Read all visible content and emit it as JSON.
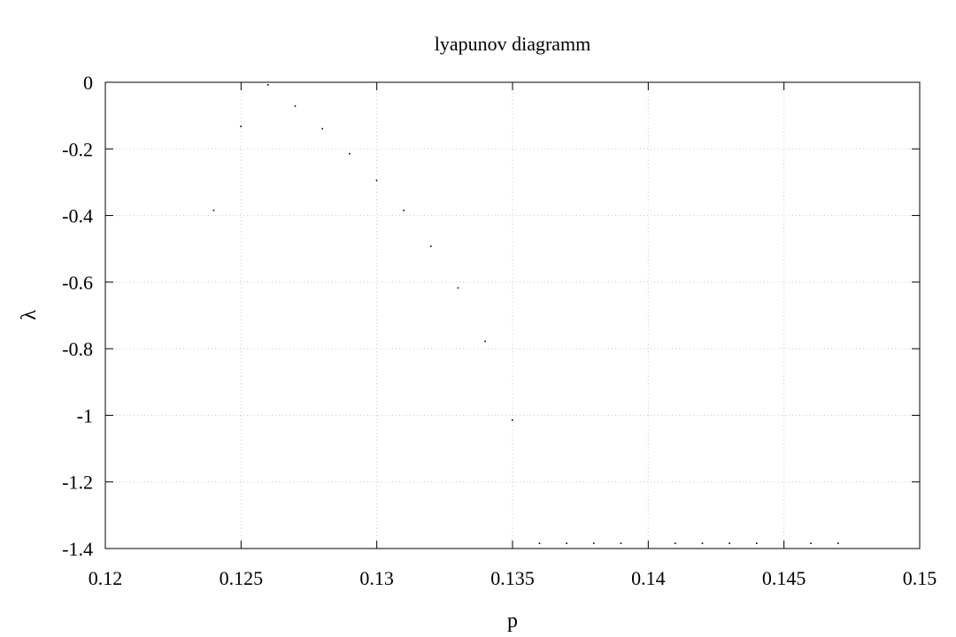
{
  "chart_data": {
    "type": "scatter",
    "title": "lyapunov diagramm",
    "xlabel": "p",
    "ylabel": "λ",
    "xlim": [
      0.12,
      0.15
    ],
    "ylim": [
      -1.4,
      0
    ],
    "xticks": [
      0.12,
      0.125,
      0.13,
      0.135,
      0.14,
      0.145,
      0.15
    ],
    "xtick_labels": [
      "0.12",
      "0.125",
      "0.13",
      "0.135",
      "0.14",
      "0.145",
      "0.15"
    ],
    "yticks": [
      0,
      -0.2,
      -0.4,
      -0.6,
      -0.8,
      -1,
      -1.2,
      -1.4
    ],
    "ytick_labels": [
      "0",
      "-0.2",
      "-0.4",
      "-0.6",
      "-0.8",
      "-1",
      "-1.2",
      "-1.4"
    ],
    "grid": true,
    "legend": "none",
    "point_color": "#000000",
    "grid_color": "#c8c8c8",
    "points": [
      {
        "x": 0.124,
        "y": -0.385
      },
      {
        "x": 0.125,
        "y": -0.133
      },
      {
        "x": 0.126,
        "y": -0.008
      },
      {
        "x": 0.127,
        "y": -0.072
      },
      {
        "x": 0.128,
        "y": -0.14
      },
      {
        "x": 0.129,
        "y": -0.215
      },
      {
        "x": 0.13,
        "y": -0.295
      },
      {
        "x": 0.131,
        "y": -0.385
      },
      {
        "x": 0.132,
        "y": -0.493
      },
      {
        "x": 0.133,
        "y": -0.618
      },
      {
        "x": 0.134,
        "y": -0.778
      },
      {
        "x": 0.135,
        "y": -1.015
      },
      {
        "x": 0.136,
        "y": -1.385
      },
      {
        "x": 0.137,
        "y": -1.385
      },
      {
        "x": 0.138,
        "y": -1.385
      },
      {
        "x": 0.139,
        "y": -1.385
      },
      {
        "x": 0.141,
        "y": -1.385
      },
      {
        "x": 0.142,
        "y": -1.385
      },
      {
        "x": 0.143,
        "y": -1.385
      },
      {
        "x": 0.144,
        "y": -1.385
      },
      {
        "x": 0.146,
        "y": -1.385
      },
      {
        "x": 0.147,
        "y": -1.385
      }
    ]
  }
}
